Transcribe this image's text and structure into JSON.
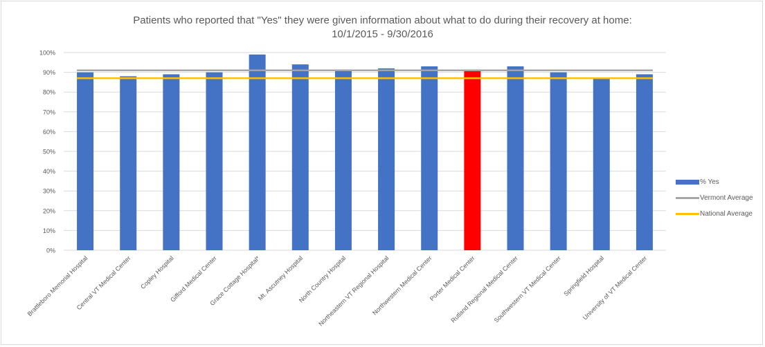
{
  "chart_data": {
    "type": "bar",
    "title_line1": "Patients who reported that \"Yes\" they were given information about what to do during their recovery at home:",
    "title_line2": "10/1/2015 - 9/30/2016",
    "categories": [
      "Brattleboro Memorial Hospital",
      "Central VT Medical Center",
      "Copley Hospital",
      "Gifford Medical Center",
      "Grace Cottage Hospital*",
      "Mt. Ascutney Hospital",
      "North Country Hospital",
      "Northeastern VT Regional Hospital",
      "Northwestern Medical Center",
      "Porter Medical Center",
      "Rutland Regional Medical Center",
      "Southwestern VT Medical Center",
      "Springfield Hospital",
      "University of VT Medical Center"
    ],
    "series": [
      {
        "name": "% Yes",
        "type": "bar",
        "values": [
          90,
          88,
          89,
          90,
          99,
          94,
          91,
          92,
          93,
          91,
          93,
          90,
          87,
          89
        ]
      },
      {
        "name": "Vermont Average",
        "type": "line",
        "value": 91
      },
      {
        "name": "National Average",
        "type": "line",
        "value": 87
      }
    ],
    "highlight": {
      "category": "Porter Medical Center",
      "color": "#ff0000"
    },
    "colors": {
      "bar": "#4472c4",
      "vermont_line": "#a5a5a5",
      "national_line": "#ffc000",
      "grid": "#d9d9d9",
      "text": "#595959"
    },
    "ylim": [
      0,
      100
    ],
    "yticks": [
      "0%",
      "10%",
      "20%",
      "30%",
      "40%",
      "50%",
      "60%",
      "70%",
      "80%",
      "90%",
      "100%"
    ],
    "grid": true,
    "legend_position": "right"
  }
}
